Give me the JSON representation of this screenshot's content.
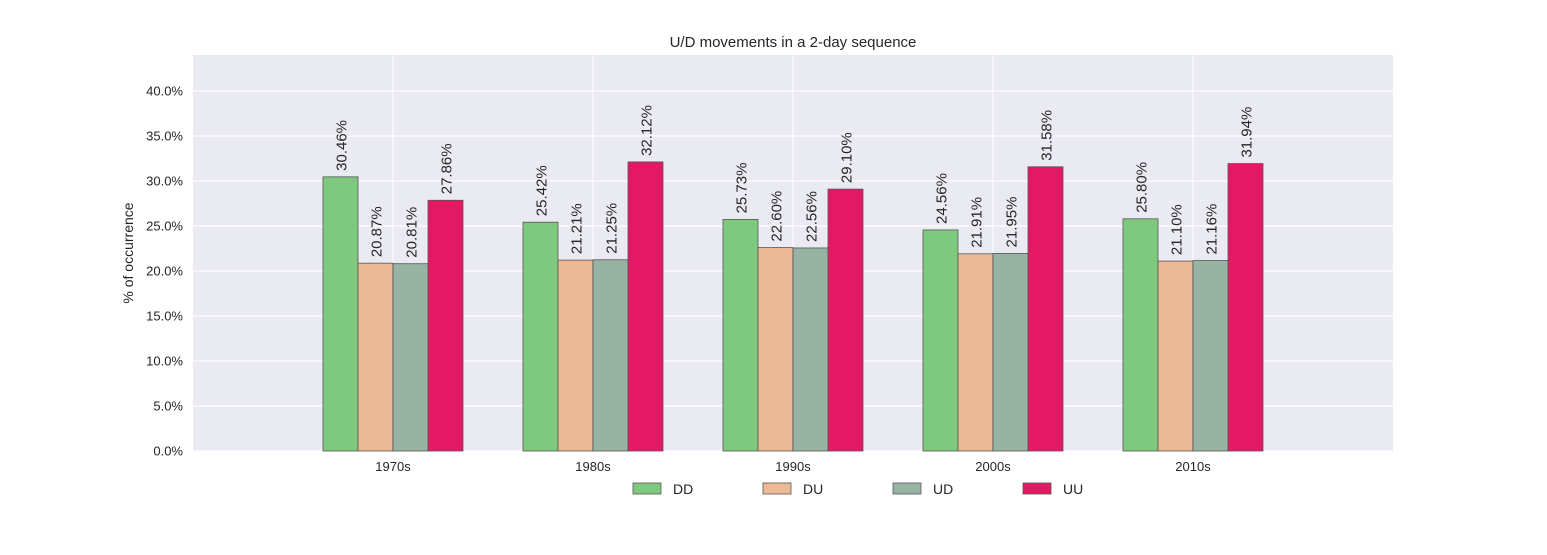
{
  "chart_data": {
    "type": "bar",
    "title": "U/D movements in a 2-day sequence",
    "xlabel": "",
    "ylabel": "% of occurrence",
    "categories": [
      "1970s",
      "1980s",
      "1990s",
      "2000s",
      "2010s"
    ],
    "series": [
      {
        "name": "DD",
        "color": "#7fc97f",
        "values": [
          30.46,
          25.42,
          25.73,
          24.56,
          25.8
        ],
        "labels": [
          "30.46%",
          "25.42%",
          "25.73%",
          "24.56%",
          "25.80%"
        ]
      },
      {
        "name": "DU",
        "color": "#edb996",
        "values": [
          20.87,
          21.21,
          22.6,
          21.91,
          21.1
        ],
        "labels": [
          "20.87%",
          "21.21%",
          "22.60%",
          "21.91%",
          "21.10%"
        ]
      },
      {
        "name": "UD",
        "color": "#97b3a3",
        "values": [
          20.81,
          21.25,
          22.56,
          21.95,
          21.16
        ],
        "labels": [
          "20.81%",
          "21.25%",
          "22.56%",
          "21.95%",
          "21.16%"
        ]
      },
      {
        "name": "UU",
        "color": "#e31a63",
        "values": [
          27.86,
          32.12,
          29.1,
          31.58,
          31.94
        ],
        "labels": [
          "27.86%",
          "32.12%",
          "29.10%",
          "31.58%",
          "31.94%"
        ]
      }
    ],
    "ylim": [
      0,
      44
    ],
    "yticks": [
      0,
      5,
      10,
      15,
      20,
      25,
      30,
      35,
      40
    ],
    "ytick_labels": [
      "0.0%",
      "5.0%",
      "10.0%",
      "15.0%",
      "20.0%",
      "25.0%",
      "30.0%",
      "35.0%",
      "40.0%"
    ],
    "grid": true,
    "legend_position": "bottom-center",
    "colors": {
      "plot_background": "#eaeaf2",
      "grid": "#ffffff",
      "bar_edge": "#555555",
      "text": "#262626"
    }
  }
}
